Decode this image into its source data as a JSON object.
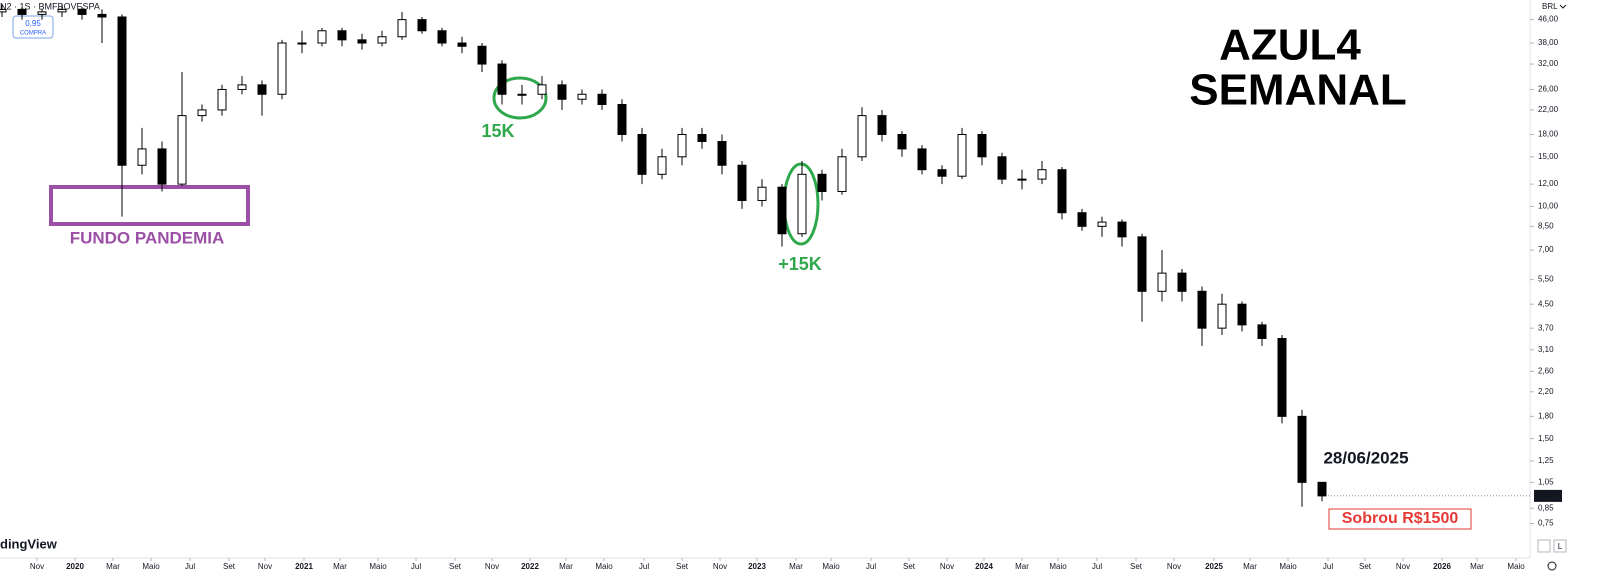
{
  "chart_data": {
    "type": "candlestick",
    "symbol": "N2 · 1S · BMFBOVESPA",
    "quote_price": "0,95",
    "quote_side": "COMPRA",
    "currency": "BRL",
    "brand": "dingView",
    "log_scale": true,
    "up_color": "#ffffff",
    "down_color": "#000000",
    "wick_color": "#000000",
    "categories": [
      null,
      null,
      null,
      null,
      null,
      null,
      null,
      null,
      null,
      null,
      null,
      null,
      null,
      null,
      null,
      null,
      null,
      null,
      null,
      null,
      null,
      null,
      null,
      null,
      null,
      null,
      null,
      null,
      null,
      null,
      null,
      null,
      null,
      null,
      null,
      null,
      null,
      null,
      null,
      null,
      null,
      null,
      null,
      null,
      null,
      null,
      null,
      null,
      null,
      null,
      null,
      null,
      null,
      null,
      null,
      null,
      null,
      null,
      null,
      null,
      null,
      null,
      null,
      null,
      null,
      null,
      null
    ],
    "open": [
      49,
      50,
      48,
      49,
      50,
      48,
      47,
      14,
      16,
      12,
      21,
      22,
      26,
      27,
      25,
      38,
      38,
      42,
      39,
      38,
      40,
      46,
      42,
      38,
      37,
      32,
      25,
      25,
      27,
      24,
      25,
      23,
      18,
      13,
      15,
      18,
      17,
      14,
      10.5,
      11.7,
      8,
      13,
      11.3,
      15,
      21,
      18,
      16,
      13.5,
      12.8,
      18,
      15,
      12.5,
      12.5,
      13.5,
      9.5,
      8.5,
      8.8,
      7.8,
      5,
      5.8,
      5,
      3.7,
      4.5,
      3.8,
      3.4,
      1.8,
      1.05
    ],
    "high": [
      52,
      51,
      50,
      52,
      51,
      50,
      48,
      19,
      17,
      30,
      23,
      27,
      29,
      28,
      39,
      42,
      43,
      43,
      41,
      42,
      49,
      47,
      43,
      40,
      38,
      33,
      27,
      29,
      28,
      26,
      26,
      24,
      19,
      16,
      19,
      19,
      18,
      14.5,
      12.5,
      12,
      14.5,
      13.5,
      16,
      22.5,
      22,
      18.5,
      16.5,
      14,
      19,
      18.5,
      15.5,
      13.5,
      14.5,
      13.8,
      9.8,
      9.2,
      9,
      8,
      7,
      6,
      5.2,
      4.9,
      4.6,
      3.9,
      3.5,
      1.9,
      1.05
    ],
    "low": [
      47,
      46,
      46,
      47,
      46,
      38,
      9.2,
      13,
      11.3,
      11.8,
      20,
      21,
      25,
      21,
      24,
      35,
      37,
      37,
      36,
      37,
      39,
      41,
      37,
      35,
      30,
      23,
      23,
      24,
      22,
      23,
      22,
      17,
      12,
      12.5,
      14,
      16,
      13,
      9.8,
      10,
      7.2,
      7.8,
      10.5,
      11,
      14.5,
      17,
      15,
      13,
      12,
      12.5,
      14,
      12,
      11.5,
      12,
      9,
      8.2,
      7.8,
      7.2,
      3.9,
      4.6,
      4.6,
      3.2,
      3.5,
      3.6,
      3.2,
      1.7,
      0.86,
      0.9
    ],
    "close": [
      50,
      48,
      49,
      50,
      48,
      47,
      14,
      16,
      12,
      21,
      22,
      26,
      27,
      25,
      38,
      38,
      42,
      39,
      38,
      40,
      46,
      42,
      38,
      37,
      32,
      25,
      25,
      27,
      24,
      25,
      23,
      18,
      13,
      15,
      18,
      17,
      14,
      10.5,
      11.7,
      8,
      13,
      11.3,
      15,
      21,
      18,
      16,
      13.5,
      12.8,
      18,
      15,
      12.5,
      12.5,
      13.5,
      9.5,
      8.5,
      8.8,
      7.8,
      5,
      5.8,
      5,
      3.7,
      4.5,
      3.8,
      3.4,
      1.8,
      1.05,
      0.94
    ],
    "last_price": {
      "value": 0.94,
      "label": "0,94"
    },
    "xlim": [
      -0.1,
      76.4
    ],
    "xticks": [
      {
        "value": 1.75,
        "label": "Nov"
      },
      {
        "value": 3.65,
        "label": "2020"
      },
      {
        "value": 5.55,
        "label": "Mar"
      },
      {
        "value": 7.45,
        "label": "Maio"
      },
      {
        "value": 9.4,
        "label": "Jul"
      },
      {
        "value": 11.35,
        "label": "Set"
      },
      {
        "value": 13.15,
        "label": "Nov"
      },
      {
        "value": 15.1,
        "label": "2021"
      },
      {
        "value": 16.9,
        "label": "Mar"
      },
      {
        "value": 18.8,
        "label": "Maio"
      },
      {
        "value": 20.7,
        "label": "Jul"
      },
      {
        "value": 22.65,
        "label": "Set"
      },
      {
        "value": 24.5,
        "label": "Nov"
      },
      {
        "value": 26.4,
        "label": "2022"
      },
      {
        "value": 28.2,
        "label": "Mar"
      },
      {
        "value": 30.1,
        "label": "Maio"
      },
      {
        "value": 32.1,
        "label": "Jul"
      },
      {
        "value": 34,
        "label": "Set"
      },
      {
        "value": 35.9,
        "label": "Nov"
      },
      {
        "value": 37.75,
        "label": "2023"
      },
      {
        "value": 39.7,
        "label": "Mar"
      },
      {
        "value": 41.45,
        "label": "Maio"
      },
      {
        "value": 43.45,
        "label": "Jul"
      },
      {
        "value": 45.35,
        "label": "Set"
      },
      {
        "value": 47.25,
        "label": "Nov"
      },
      {
        "value": 49.1,
        "label": "2024"
      },
      {
        "value": 51,
        "label": "Mar"
      },
      {
        "value": 52.8,
        "label": "Maio"
      },
      {
        "value": 54.75,
        "label": "Jul"
      },
      {
        "value": 56.7,
        "label": "Set"
      },
      {
        "value": 58.6,
        "label": "Nov"
      },
      {
        "value": 60.6,
        "label": "2025"
      },
      {
        "value": 62.4,
        "label": "Mar"
      },
      {
        "value": 64.3,
        "label": "Maio"
      },
      {
        "value": 66.3,
        "label": "Jul"
      },
      {
        "value": 68.15,
        "label": "Set"
      },
      {
        "value": 70.05,
        "label": "Nov"
      },
      {
        "value": 72,
        "label": "2026"
      },
      {
        "value": 73.75,
        "label": "Mar"
      },
      {
        "value": 75.7,
        "label": "Maio"
      }
    ],
    "ylim": [
      0.58,
      54
    ],
    "yticks": [
      {
        "value": 46,
        "label": "46,00"
      },
      {
        "value": 38,
        "label": "38,00"
      },
      {
        "value": 32,
        "label": "32,00"
      },
      {
        "value": 26,
        "label": "26,00"
      },
      {
        "value": 22,
        "label": "22,00"
      },
      {
        "value": 18,
        "label": "18,00"
      },
      {
        "value": 15,
        "label": "15,00"
      },
      {
        "value": 12,
        "label": "12,00"
      },
      {
        "value": 10,
        "label": "10,00"
      },
      {
        "value": 8.5,
        "label": "8,50"
      },
      {
        "value": 7,
        "label": "7,00"
      },
      {
        "value": 5.5,
        "label": "5,50"
      },
      {
        "value": 4.5,
        "label": "4,50"
      },
      {
        "value": 3.7,
        "label": "3,70"
      },
      {
        "value": 3.1,
        "label": "3,10"
      },
      {
        "value": 2.6,
        "label": "2,60"
      },
      {
        "value": 2.2,
        "label": "2,20"
      },
      {
        "value": 1.8,
        "label": "1,80"
      },
      {
        "value": 1.5,
        "label": "1,50"
      },
      {
        "value": 1.25,
        "label": "1,25"
      },
      {
        "value": 1.05,
        "label": "1,05"
      },
      {
        "value": 0.85,
        "label": "0,85"
      },
      {
        "value": 0.75,
        "label": "0,75"
      }
    ],
    "annotations": {
      "title_line1": "AZUL4",
      "title_line2": "SEMANAL",
      "pandemic": "FUNDO PANDEMIA",
      "volume1": "15K",
      "volume2": "+15K",
      "date": "28/06/2025",
      "remaining": "Sobrou R$1500"
    }
  }
}
